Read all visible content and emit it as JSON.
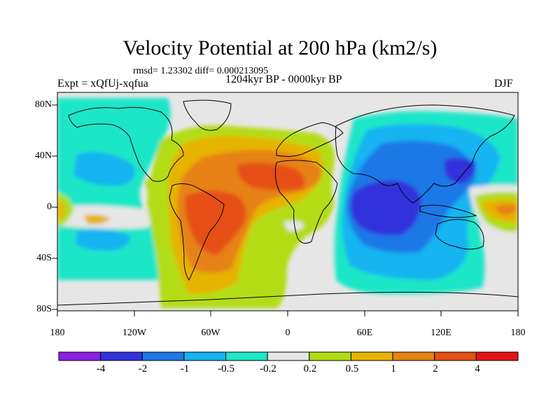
{
  "header": {
    "title": "Velocity Potential at 200 hPa (km2/s)",
    "stats": "rmsd= 1.23302 diff= 0.000213095",
    "experiment": "Expt = xQfUj-xqfua",
    "period": "1204kyr BP - 0000kyr BP",
    "season": "DJF"
  },
  "axes": {
    "x_ticks": [
      "180",
      "120W",
      "60W",
      "0",
      "60E",
      "120E",
      "180"
    ],
    "y_ticks": [
      "80N",
      "40N",
      "0",
      "40S",
      "80S"
    ]
  },
  "colorbar": {
    "colors": [
      "#8c1ee6",
      "#3232dc",
      "#1e78e6",
      "#14b4f0",
      "#1ee6c8",
      "#e6e6e6",
      "#b4dc14",
      "#e6b400",
      "#e68214",
      "#e65014",
      "#e61414"
    ],
    "labels": [
      "-4",
      "-2",
      "-1",
      "-0.5",
      "-0.2",
      "0.2",
      "0.5",
      "1",
      "2",
      "4"
    ]
  }
}
